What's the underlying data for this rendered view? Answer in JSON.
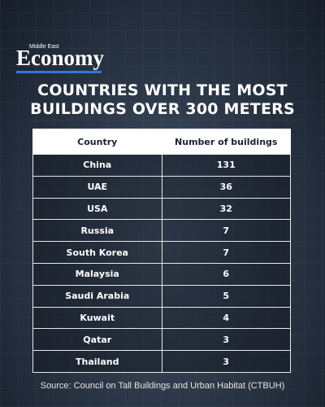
{
  "header": {
    "logo_small": "Middle East",
    "logo": "Economy"
  },
  "title_lines": [
    "COUNTRIES WITH THE MOST",
    "BUILDINGS OVER 300 METERS"
  ],
  "table": {
    "columns": [
      "Country",
      "Number of buildings"
    ],
    "rows": [
      [
        "China",
        131
      ],
      [
        "UAE",
        36
      ],
      [
        "USA",
        32
      ],
      [
        "Russia",
        7
      ],
      [
        "South Korea",
        7
      ],
      [
        "Malaysia",
        6
      ],
      [
        "Saudi Arabia",
        5
      ],
      [
        "Kuwait",
        4
      ],
      [
        "Qatar",
        3
      ],
      [
        "Thailand",
        3
      ]
    ]
  },
  "source": "Source: Council on Tall Buildings and Urban Habitat (CTBUH)"
}
